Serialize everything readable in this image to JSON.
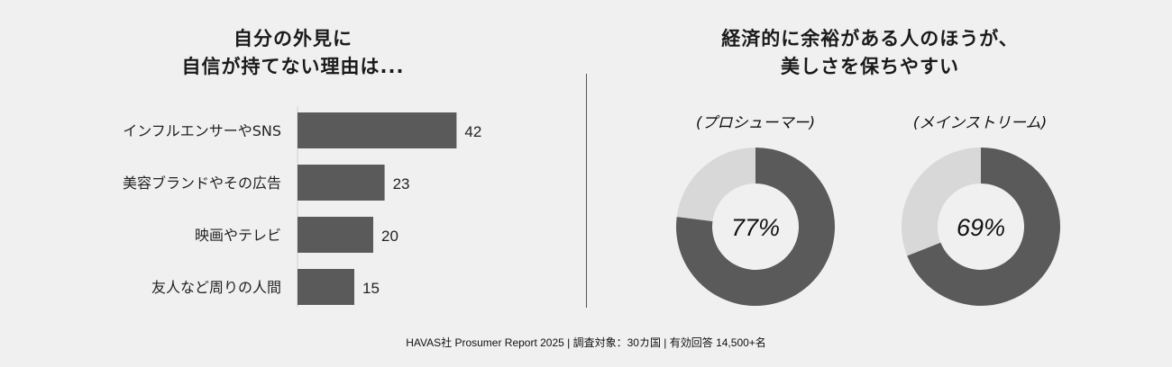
{
  "left_title": {
    "line1": "自分の外見に",
    "line2": "自信が持てない理由は..."
  },
  "right_title": {
    "line1": "経済的に余裕がある人のほうが、",
    "line2": "美しさを保ちやすい"
  },
  "footer": "HAVAS社 Prosumer Report 2025 | 調査対象：30カ国  | 有効回答 14,500+名",
  "colors": {
    "bar": "#5a5a5a",
    "donut_main": "#5a5a5a",
    "donut_rest": "#d8d8d8",
    "background": "#f0f0f0"
  },
  "chart_data": [
    {
      "type": "bar",
      "orientation": "horizontal",
      "categories": [
        "インフルエンサーやSNS",
        "美容ブランドやその広告",
        "映画やテレビ",
        "友人など周りの人間"
      ],
      "values": [
        42,
        23,
        20,
        15
      ],
      "title": "自分の外見に 自信が持てない理由は..."
    },
    {
      "type": "pie",
      "title": "(プロシューマー)",
      "center_label": "77%",
      "values": [
        77,
        23
      ]
    },
    {
      "type": "pie",
      "title": "(メインストリーム)",
      "center_label": "69%",
      "values": [
        69,
        31
      ]
    }
  ]
}
